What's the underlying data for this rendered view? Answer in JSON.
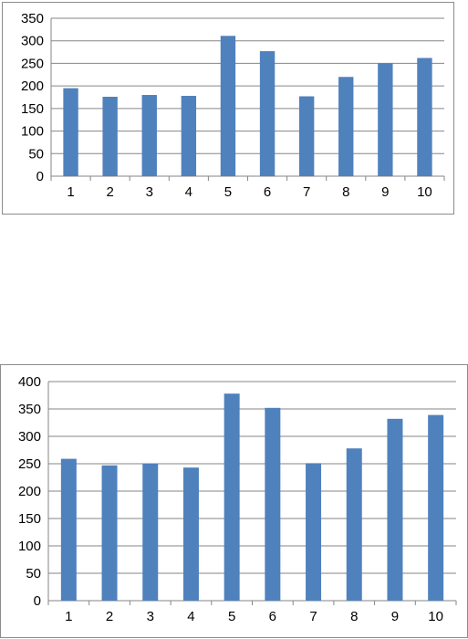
{
  "colors": {
    "bar": "#4f81bd",
    "grid": "#868686",
    "axis": "#868686",
    "frame": "#8c8c8c",
    "text": "#000000"
  },
  "chart_data": [
    {
      "type": "bar",
      "categories": [
        "1",
        "2",
        "3",
        "4",
        "5",
        "6",
        "7",
        "8",
        "9",
        "10"
      ],
      "values": [
        195,
        176,
        180,
        178,
        311,
        277,
        177,
        220,
        250,
        262
      ],
      "ylim": [
        0,
        350
      ],
      "yticks": [
        "0",
        "50",
        "100",
        "150",
        "200",
        "250",
        "300",
        "350"
      ],
      "grid": true,
      "legend": "none"
    },
    {
      "type": "bar",
      "categories": [
        "1",
        "2",
        "3",
        "4",
        "5",
        "6",
        "7",
        "8",
        "9",
        "10"
      ],
      "values": [
        259,
        247,
        250,
        243,
        378,
        352,
        251,
        278,
        332,
        339
      ],
      "ylim": [
        0,
        400
      ],
      "yticks": [
        "0",
        "50",
        "100",
        "150",
        "200",
        "250",
        "300",
        "350",
        "400"
      ],
      "grid": true,
      "legend": "none"
    }
  ]
}
